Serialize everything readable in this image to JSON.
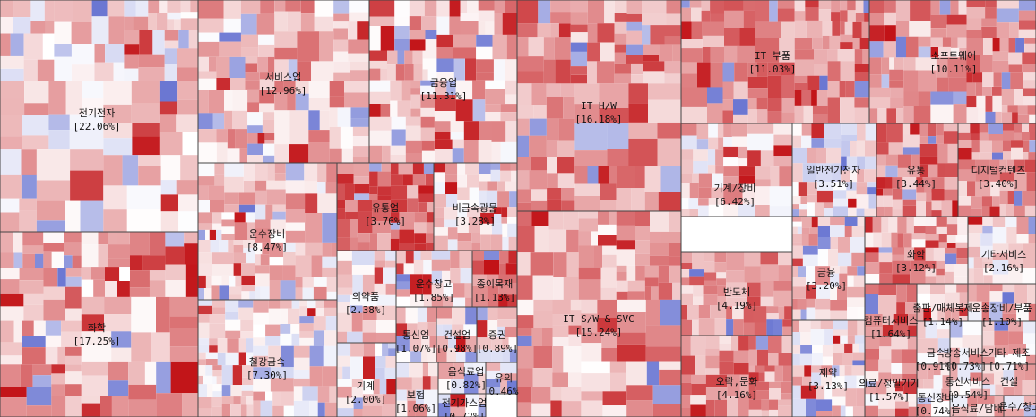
{
  "chart_data": {
    "type": "treemap",
    "title": "",
    "color_scale": {
      "low": "#2b3cbf",
      "mid": "#ffffff",
      "high": "#c21317"
    },
    "sectors": [
      {
        "name": "전기전자",
        "pct_label": "[22.06%]",
        "value": 22.06
      },
      {
        "name": "화학",
        "pct_label": "[17.25%]",
        "value": 17.25
      },
      {
        "name": "서비스업",
        "pct_label": "[12.96%]",
        "value": 12.96
      },
      {
        "name": "운수장비",
        "pct_label": "[8.47%]",
        "value": 8.47
      },
      {
        "name": "철강금속",
        "pct_label": "[7.30%]",
        "value": 7.3
      },
      {
        "name": "금융업",
        "pct_label": "[11.31%]",
        "value": 11.31
      },
      {
        "name": "유통업",
        "pct_label": "[3.76%]",
        "value": 3.76
      },
      {
        "name": "비금속광물",
        "pct_label": "[3.28%]",
        "value": 3.28
      },
      {
        "name": "의약품",
        "pct_label": "[2.38%]",
        "value": 2.38
      },
      {
        "name": "운수창고",
        "pct_label": "[1.85%]",
        "value": 1.85
      },
      {
        "name": "종이목재",
        "pct_label": "[1.13%]",
        "value": 1.13
      },
      {
        "name": "기계",
        "pct_label": "[2.00%]",
        "value": 2.0
      },
      {
        "name": "통신업",
        "pct_label": "[1.07%]",
        "value": 1.07
      },
      {
        "name": "건설업",
        "pct_label": "[0.98%]",
        "value": 0.98
      },
      {
        "name": "증권",
        "pct_label": "[0.89%]",
        "value": 0.89
      },
      {
        "name": "보험",
        "pct_label": "[1.06%]",
        "value": 1.06
      },
      {
        "name": "음식료업",
        "pct_label": "[0.82%]",
        "value": 0.82
      },
      {
        "name": "유의",
        "pct_label": "0.46%",
        "value": 0.46
      },
      {
        "name": "전기가스업",
        "pct_label": "[0.72%]",
        "value": 0.72
      },
      {
        "name": "IT H/W",
        "pct_label": "[16.18%]",
        "value": 16.18
      },
      {
        "name": "IT S/W & SVC",
        "pct_label": "[15.24%]",
        "value": 15.24
      },
      {
        "name": "IT 부품",
        "pct_label": "[11.03%]",
        "value": 11.03
      },
      {
        "name": "소프트웨어",
        "pct_label": "[10.11%]",
        "value": 10.11
      },
      {
        "name": "일반전기전자",
        "pct_label": "[3.51%]",
        "value": 3.51
      },
      {
        "name": "유통",
        "pct_label": "[3.44%]",
        "value": 3.44
      },
      {
        "name": "디지털컨텐츠",
        "pct_label": "[3.40%]",
        "value": 3.4
      },
      {
        "name": "기계/장비",
        "pct_label": "[6.42%]",
        "value": 6.42
      },
      {
        "name": "화학",
        "pct_label": "[3.12%]",
        "value": 3.12
      },
      {
        "name": "기타서비스",
        "pct_label": "[2.16%]",
        "value": 2.16
      },
      {
        "name": "금융",
        "pct_label": "[3.20%]",
        "value": 3.2
      },
      {
        "name": "반도체",
        "pct_label": "[4.19%]",
        "value": 4.19
      },
      {
        "name": "컴퓨터서비스",
        "pct_label": "[1.64%]",
        "value": 1.64
      },
      {
        "name": "출판/매체복제",
        "pct_label": "[1.14%]",
        "value": 1.14
      },
      {
        "name": "운송장비/부품",
        "pct_label": "[1.10%]",
        "value": 1.1
      },
      {
        "name": "방송서비스",
        "pct_label": "[0.73%]",
        "value": 0.73
      },
      {
        "name": "기타 제조",
        "pct_label": "[0.71%]",
        "value": 0.71
      },
      {
        "name": "금속",
        "pct_label": "[0.91%]",
        "value": 0.91
      },
      {
        "name": "제약",
        "pct_label": "[3.13%]",
        "value": 3.13
      },
      {
        "name": "오락,문화",
        "pct_label": "[4.16%]",
        "value": 4.16
      },
      {
        "name": "의료/정밀기기",
        "pct_label": "[1.57%]",
        "value": 1.57
      },
      {
        "name": "통신장비",
        "pct_label": "[0.74%]",
        "value": 0.74
      },
      {
        "name": "통신서비스",
        "pct_label": "[0.54%]",
        "value": 0.54
      },
      {
        "name": "건설",
        "pct_label": "",
        "value": 0.5
      },
      {
        "name": "음식료/담배",
        "pct_label": "[0.50%]",
        "value": 0.5
      },
      {
        "name": "운수/창고",
        "pct_label": "",
        "value": 0.4
      }
    ]
  }
}
